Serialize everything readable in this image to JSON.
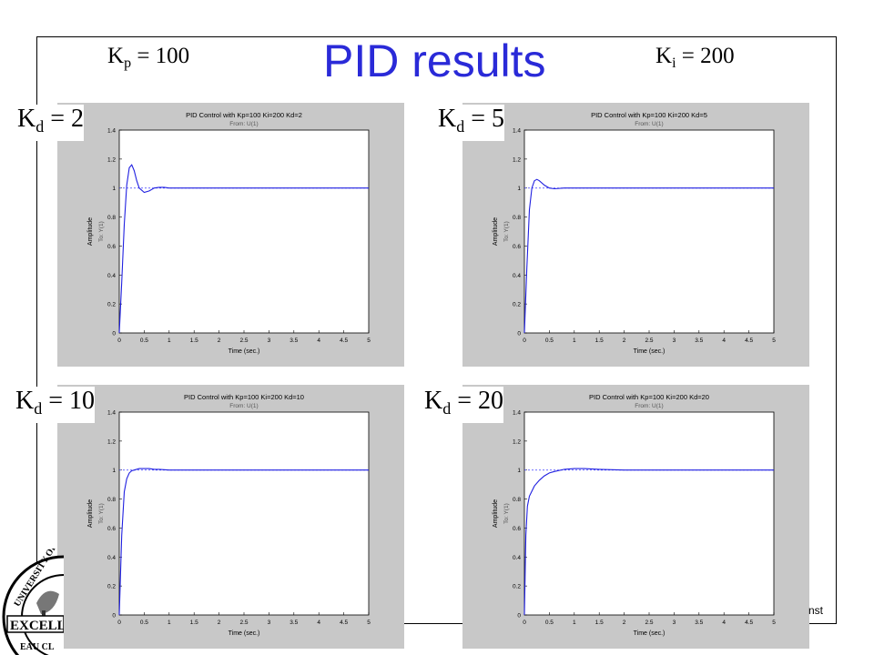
{
  "slide": {
    "title": "PID results",
    "kp_sym": "K",
    "kp_sub": "p",
    "kp_val": " = 100",
    "ki_sym": "K",
    "ki_sub": "i",
    "ki_val": " = 200",
    "kd_sym": "K",
    "kd_sub": "d",
    "footer": "nst",
    "logo": {
      "text_top": "UNIVERSITY OF",
      "text_mid": "EXCELL",
      "text_bottom": "EAU CL"
    }
  },
  "plots": [
    {
      "kd_label": " = 2",
      "title": "PID Control with Kp=100 Ki=200 Kd=2"
    },
    {
      "kd_label": " = 5",
      "title": "PID Control with Kp=100 Ki=200 Kd=5"
    },
    {
      "kd_label": " = 10",
      "title": "PID Control with Kp=100 Ki=200 Kd=10"
    },
    {
      "kd_label": " = 20",
      "title": "PID Control with Kp=100 Ki=200 Kd=20"
    }
  ],
  "chart_data": [
    {
      "type": "line",
      "title": "PID Control with Kp=100 Ki=200 Kd=2",
      "subtitle": "From: U(1)",
      "xlabel": "Time (sec.)",
      "ylabel": "Amplitude",
      "ylabel2": "To: Y(1)",
      "xlim": [
        0,
        5
      ],
      "ylim": [
        0,
        1.4
      ],
      "xticks": [
        "0",
        "0.5",
        "1",
        "1.5",
        "2",
        "2.5",
        "3",
        "3.5",
        "4",
        "4.5",
        "5"
      ],
      "yticks": [
        "0",
        "0.2",
        "0.4",
        "0.6",
        "0.8",
        "1",
        "1.2",
        "1.4"
      ],
      "reference": 1,
      "series": [
        {
          "x": [
            0,
            0.05,
            0.1,
            0.15,
            0.2,
            0.25,
            0.3,
            0.35,
            0.4,
            0.5,
            0.6,
            0.7,
            0.8,
            0.9,
            1.0,
            1.2,
            1.5
          ],
          "y": [
            0,
            0.35,
            0.75,
            1.02,
            1.14,
            1.16,
            1.12,
            1.05,
            1.0,
            0.97,
            0.98,
            1.0,
            1.005,
            1.005,
            1.0,
            1.0,
            1.0
          ]
        }
      ]
    },
    {
      "type": "line",
      "title": "PID Control with Kp=100 Ki=200 Kd=5",
      "subtitle": "From: U(1)",
      "xlabel": "Time (sec.)",
      "ylabel": "Amplitude",
      "ylabel2": "To: Y(1)",
      "xlim": [
        0,
        5
      ],
      "ylim": [
        0,
        1.4
      ],
      "xticks": [
        "0",
        "0.5",
        "1",
        "1.5",
        "2",
        "2.5",
        "3",
        "3.5",
        "4",
        "4.5",
        "5"
      ],
      "yticks": [
        "0",
        "0.2",
        "0.4",
        "0.6",
        "0.8",
        "1",
        "1.2",
        "1.4"
      ],
      "reference": 1,
      "series": [
        {
          "x": [
            0,
            0.05,
            0.1,
            0.15,
            0.2,
            0.25,
            0.3,
            0.4,
            0.5,
            0.6,
            0.8,
            1.0,
            1.5,
            2.0
          ],
          "y": [
            0,
            0.45,
            0.85,
            1.0,
            1.05,
            1.06,
            1.05,
            1.02,
            1.0,
            0.995,
            1.0,
            1.0,
            1.0,
            1.0
          ]
        }
      ]
    },
    {
      "type": "line",
      "title": "PID Control with Kp=100 Ki=200 Kd=10",
      "subtitle": "From: U(1)",
      "xlabel": "Time (sec.)",
      "ylabel": "Amplitude",
      "ylabel2": "To: Y(1)",
      "xlim": [
        0,
        5
      ],
      "ylim": [
        0,
        1.4
      ],
      "xticks": [
        "0",
        "0.5",
        "1",
        "1.5",
        "2",
        "2.5",
        "3",
        "3.5",
        "4",
        "4.5",
        "5"
      ],
      "yticks": [
        "0",
        "0.2",
        "0.4",
        "0.6",
        "0.8",
        "1",
        "1.2",
        "1.4"
      ],
      "reference": 1,
      "series": [
        {
          "x": [
            0,
            0.05,
            0.1,
            0.15,
            0.2,
            0.25,
            0.3,
            0.4,
            0.5,
            0.6,
            0.7,
            0.8,
            1.0,
            1.5,
            2.0
          ],
          "y": [
            0,
            0.55,
            0.85,
            0.94,
            0.98,
            0.995,
            1.0,
            1.01,
            1.01,
            1.01,
            1.005,
            1.005,
            1.0,
            1.0,
            1.0
          ]
        }
      ]
    },
    {
      "type": "line",
      "title": "PID Control with Kp=100 Ki=200 Kd=20",
      "subtitle": "From: U(1)",
      "xlabel": "Time (sec.)",
      "ylabel": "Amplitude",
      "ylabel2": "To: Y(1)",
      "xlim": [
        0,
        5
      ],
      "ylim": [
        0,
        1.4
      ],
      "xticks": [
        "0",
        "0.5",
        "1",
        "1.5",
        "2",
        "2.5",
        "3",
        "3.5",
        "4",
        "4.5",
        "5"
      ],
      "yticks": [
        "0",
        "0.2",
        "0.4",
        "0.6",
        "0.8",
        "1",
        "1.2",
        "1.4"
      ],
      "reference": 1,
      "series": [
        {
          "x": [
            0,
            0.03,
            0.06,
            0.1,
            0.2,
            0.3,
            0.4,
            0.5,
            0.6,
            0.8,
            1.0,
            1.2,
            1.5,
            2.0,
            2.5
          ],
          "y": [
            0,
            0.55,
            0.75,
            0.82,
            0.89,
            0.93,
            0.96,
            0.98,
            0.99,
            1.005,
            1.01,
            1.01,
            1.005,
            1.0,
            1.0
          ]
        }
      ]
    }
  ]
}
